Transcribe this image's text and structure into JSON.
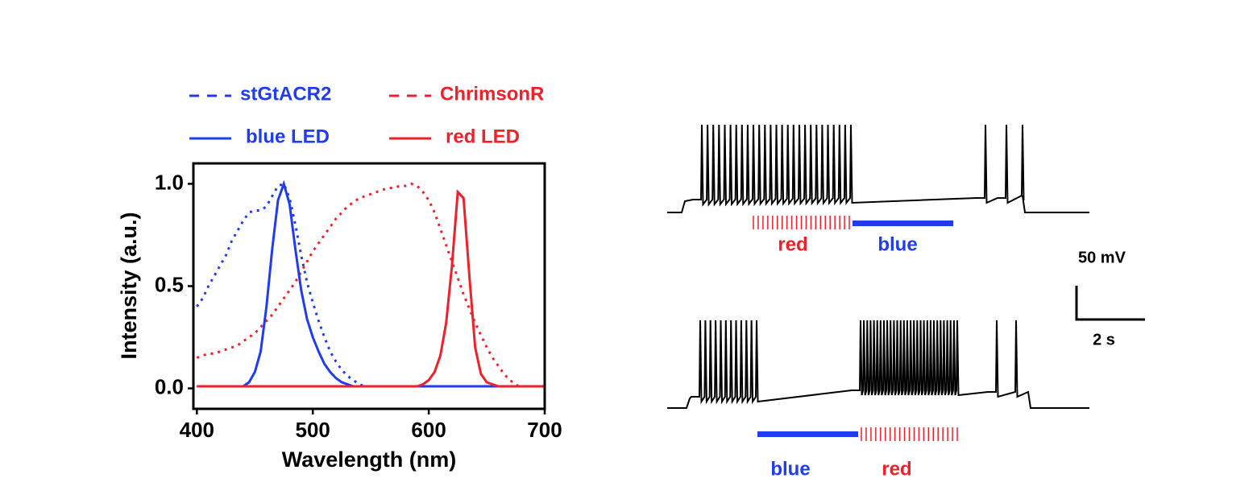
{
  "chart_data": {
    "type": "line",
    "xlabel": "Wavelength (nm)",
    "ylabel": "Intensity (a.u.)",
    "x": [
      400,
      405,
      410,
      415,
      420,
      425,
      430,
      435,
      440,
      445,
      450,
      455,
      460,
      465,
      470,
      475,
      480,
      485,
      490,
      495,
      500,
      505,
      510,
      515,
      520,
      525,
      530,
      535,
      540,
      545,
      550,
      555,
      560,
      565,
      570,
      575,
      580,
      585,
      590,
      595,
      600,
      605,
      610,
      615,
      620,
      625,
      630,
      635,
      640,
      645,
      650,
      655,
      660,
      665,
      670,
      675,
      680,
      685,
      690,
      695,
      700
    ],
    "xlim": [
      397,
      700
    ],
    "xticks": [
      400,
      500,
      600,
      700
    ],
    "ylim": [
      -0.1,
      1.1
    ],
    "yticks": [
      {
        "value": 0,
        "label": "0.0"
      },
      {
        "value": 0.5,
        "label": "0.5"
      },
      {
        "value": 1,
        "label": "1.0"
      }
    ],
    "series": [
      {
        "name": "stGtACR2",
        "color": "#1f3cf0",
        "style": "dotted",
        "values": [
          0.4,
          0.44,
          0.5,
          0.55,
          0.6,
          0.65,
          0.72,
          0.77,
          0.82,
          0.86,
          0.87,
          0.87,
          0.89,
          0.94,
          0.99,
          1.0,
          0.93,
          0.8,
          0.65,
          0.52,
          0.42,
          0.33,
          0.25,
          0.18,
          0.13,
          0.09,
          0.06,
          0.04,
          0.02,
          0.01,
          null,
          null,
          null,
          null,
          null,
          null,
          null,
          null,
          null,
          null,
          null,
          null,
          null,
          null,
          null,
          null,
          null,
          null,
          null,
          null,
          null,
          null,
          null,
          null,
          null,
          null,
          null,
          null,
          null,
          null,
          null
        ]
      },
      {
        "name": "ChrimsonR",
        "color": "#f0202a",
        "style": "dotted",
        "values": [
          0.15,
          0.16,
          0.17,
          0.17,
          0.18,
          0.19,
          0.2,
          0.21,
          0.23,
          0.25,
          0.27,
          0.3,
          0.33,
          0.36,
          0.4,
          0.44,
          0.48,
          0.52,
          0.57,
          0.62,
          0.67,
          0.71,
          0.75,
          0.79,
          0.83,
          0.86,
          0.89,
          0.91,
          0.93,
          0.94,
          0.95,
          0.96,
          0.97,
          0.98,
          0.98,
          0.99,
          0.99,
          1.0,
          0.99,
          0.96,
          0.92,
          0.86,
          0.78,
          0.7,
          0.62,
          0.54,
          0.46,
          0.39,
          0.32,
          0.26,
          0.2,
          0.15,
          0.11,
          0.07,
          0.04,
          0.02,
          0.0,
          null,
          null,
          null,
          null
        ]
      },
      {
        "name": "blue LED",
        "color": "#1f3cf0",
        "style": "solid",
        "values": [
          0.01,
          0.01,
          0.01,
          0.01,
          0.01,
          0.01,
          0.01,
          0.01,
          0.01,
          0.03,
          0.08,
          0.18,
          0.4,
          0.68,
          0.92,
          1.0,
          0.9,
          0.68,
          0.48,
          0.34,
          0.25,
          0.18,
          0.12,
          0.08,
          0.05,
          0.03,
          0.02,
          0.01,
          0.01,
          0.01,
          0.01,
          0.01,
          0.01,
          0.01,
          0.01,
          0.01,
          0.01,
          0.01,
          0.01,
          0.01,
          0.01,
          0.01,
          0.01,
          0.01,
          0.01,
          0.01,
          0.01,
          0.01,
          0.01,
          0.01,
          0.01,
          0.01,
          0.01,
          0.01,
          0.01,
          0.01,
          0.01,
          0.01,
          0.01,
          0.01,
          0.01
        ]
      },
      {
        "name": "red LED",
        "color": "#f0202a",
        "style": "solid",
        "values": [
          0.01,
          0.01,
          0.01,
          0.01,
          0.01,
          0.01,
          0.01,
          0.01,
          0.01,
          0.01,
          0.01,
          0.01,
          0.01,
          0.01,
          0.01,
          0.01,
          0.01,
          0.01,
          0.01,
          0.01,
          0.01,
          0.01,
          0.01,
          0.01,
          0.01,
          0.01,
          0.01,
          0.01,
          0.01,
          0.01,
          0.01,
          0.01,
          0.01,
          0.01,
          0.01,
          0.01,
          0.01,
          0.01,
          0.01,
          0.02,
          0.04,
          0.08,
          0.16,
          0.32,
          0.6,
          0.96,
          0.93,
          0.55,
          0.2,
          0.07,
          0.03,
          0.02,
          0.01,
          0.01,
          0.01,
          0.01,
          0.01,
          0.01,
          0.01,
          0.01,
          0.01
        ]
      }
    ]
  },
  "traces": {
    "top": {
      "labels": [
        "red",
        "blue"
      ]
    },
    "bottom": {
      "labels": [
        "blue",
        "red"
      ]
    },
    "scale_bar": {
      "vertical": "50 mV",
      "horizontal": "2 s"
    }
  }
}
